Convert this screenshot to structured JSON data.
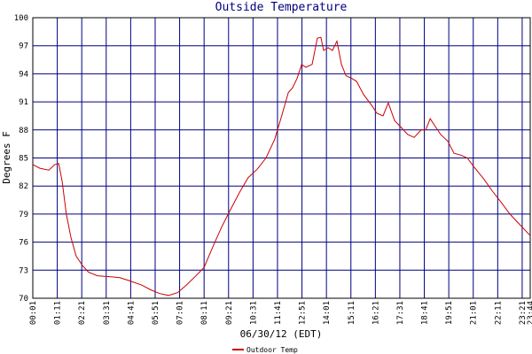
{
  "chart_data": {
    "type": "line",
    "title": "Outside Temperature",
    "xlabel": "06/30/12 (EDT)",
    "ylabel": "Degrees F",
    "x": [
      1,
      21,
      47,
      64,
      75,
      85,
      97,
      110,
      125,
      143,
      160,
      186,
      224,
      250,
      275,
      313,
      338,
      364,
      389,
      415,
      440,
      465,
      491,
      516,
      541,
      567,
      592,
      617,
      643,
      668,
      693,
      713,
      732,
      744,
      757,
      770,
      782,
      800,
      815,
      825,
      833,
      846,
      858,
      871,
      884,
      897,
      914,
      927,
      947,
      973,
      985,
      1003,
      1018,
      1036,
      1054,
      1074,
      1092,
      1112,
      1125,
      1138,
      1150,
      1168,
      1188,
      1206,
      1226,
      1244,
      1264,
      1290,
      1315,
      1340,
      1366,
      1391,
      1424
    ],
    "series": [
      {
        "name": "Outdoor Temp",
        "color": "#cc0000",
        "values": [
          84.3,
          83.9,
          83.7,
          84.3,
          84.4,
          82.5,
          79.0,
          76.5,
          74.5,
          73.5,
          72.8,
          72.4,
          72.3,
          72.2,
          71.9,
          71.4,
          70.9,
          70.5,
          70.3,
          70.6,
          71.4,
          72.3,
          73.3,
          75.5,
          77.6,
          79.5,
          81.3,
          82.9,
          83.8,
          85.0,
          87.0,
          89.5,
          92.0,
          92.5,
          93.5,
          95.0,
          94.7,
          95.0,
          97.8,
          97.9,
          96.5,
          96.8,
          96.5,
          97.5,
          95.0,
          93.8,
          93.5,
          93.2,
          91.8,
          90.5,
          89.8,
          89.5,
          90.9,
          89.0,
          88.3,
          87.5,
          87.2,
          88.0,
          88.0,
          89.2,
          88.5,
          87.5,
          86.8,
          85.5,
          85.3,
          85.0,
          84.0,
          82.8,
          81.5,
          80.3,
          79.0,
          78.0,
          76.7
        ]
      }
    ],
    "xlim": [
      1,
      1424
    ],
    "xticks": [
      {
        "value": 1,
        "label": "00:01"
      },
      {
        "value": 71,
        "label": "01:11"
      },
      {
        "value": 141,
        "label": "02:21"
      },
      {
        "value": 211,
        "label": "03:31"
      },
      {
        "value": 281,
        "label": "04:41"
      },
      {
        "value": 351,
        "label": "05:51"
      },
      {
        "value": 421,
        "label": "07:01"
      },
      {
        "value": 491,
        "label": "08:11"
      },
      {
        "value": 561,
        "label": "09:21"
      },
      {
        "value": 631,
        "label": "10:31"
      },
      {
        "value": 701,
        "label": "11:41"
      },
      {
        "value": 771,
        "label": "12:51"
      },
      {
        "value": 841,
        "label": "14:01"
      },
      {
        "value": 911,
        "label": "15:11"
      },
      {
        "value": 981,
        "label": "16:21"
      },
      {
        "value": 1051,
        "label": "17:31"
      },
      {
        "value": 1121,
        "label": "18:41"
      },
      {
        "value": 1191,
        "label": "19:51"
      },
      {
        "value": 1261,
        "label": "21:01"
      },
      {
        "value": 1331,
        "label": "22:11"
      },
      {
        "value": 1401,
        "label": "23:21"
      },
      {
        "value": 1424,
        "label": "23:44"
      }
    ],
    "ylim": [
      70,
      100
    ],
    "yticks": [
      70,
      73,
      76,
      79,
      82,
      85,
      88,
      91,
      94,
      97,
      100
    ],
    "grid": true,
    "legend": "bottom"
  }
}
